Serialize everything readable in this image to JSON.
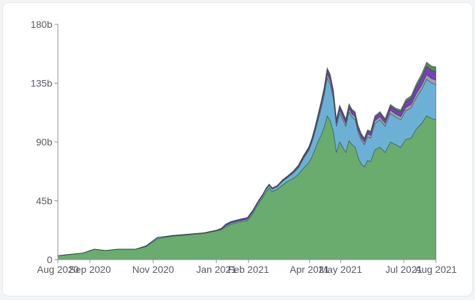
{
  "chart_data": {
    "type": "area",
    "stacked": true,
    "title": "",
    "xlabel": "",
    "ylabel": "",
    "ylim": [
      0,
      180
    ],
    "y_ticks": [
      {
        "value": 0,
        "label": "0"
      },
      {
        "value": 45,
        "label": "45b"
      },
      {
        "value": 90,
        "label": "90b"
      },
      {
        "value": 135,
        "label": "135b"
      },
      {
        "value": 180,
        "label": "180b"
      }
    ],
    "x_ticks": [
      {
        "x": "2020-08-01",
        "label": "Aug 2020"
      },
      {
        "x": "2020-09-01",
        "label": "Sep 2020"
      },
      {
        "x": "2020-11-01",
        "label": "Nov 2020"
      },
      {
        "x": "2021-01-01",
        "label": "Jan 2021"
      },
      {
        "x": "2021-02-01",
        "label": "Feb 2021"
      },
      {
        "x": "2021-04-01",
        "label": "Apr 2021"
      },
      {
        "x": "2021-05-01",
        "label": "May 2021"
      },
      {
        "x": "2021-07-01",
        "label": "Jul 2021"
      },
      {
        "x": "2021-08-01",
        "label": "Aug 2021"
      }
    ],
    "x": [
      "2020-08-01",
      "2020-08-12",
      "2020-08-25",
      "2020-09-05",
      "2020-09-16",
      "2020-09-28",
      "2020-10-15",
      "2020-10-25",
      "2020-11-05",
      "2020-11-20",
      "2020-12-05",
      "2020-12-20",
      "2021-01-01",
      "2021-01-06",
      "2021-01-10",
      "2021-01-15",
      "2021-01-20",
      "2021-01-25",
      "2021-01-31",
      "2021-02-05",
      "2021-02-10",
      "2021-02-15",
      "2021-02-18",
      "2021-02-21",
      "2021-02-24",
      "2021-03-01",
      "2021-03-06",
      "2021-03-11",
      "2021-03-16",
      "2021-03-21",
      "2021-03-26",
      "2021-03-31",
      "2021-04-03",
      "2021-04-06",
      "2021-04-09",
      "2021-04-12",
      "2021-04-15",
      "2021-04-18",
      "2021-04-21",
      "2021-04-24",
      "2021-04-27",
      "2021-04-30",
      "2021-05-03",
      "2021-05-06",
      "2021-05-09",
      "2021-05-12",
      "2021-05-15",
      "2021-05-18",
      "2021-05-21",
      "2021-05-24",
      "2021-05-27",
      "2021-05-30",
      "2021-06-03",
      "2021-06-08",
      "2021-06-13",
      "2021-06-18",
      "2021-06-23",
      "2021-06-28",
      "2021-07-03",
      "2021-07-08",
      "2021-07-13",
      "2021-07-18",
      "2021-07-23",
      "2021-07-28",
      "2021-08-01"
    ],
    "series": [
      {
        "color": "#6aab6e",
        "values": [
          3,
          4,
          5,
          8,
          7,
          8,
          8,
          10,
          16,
          18,
          19,
          20,
          22,
          23,
          25,
          27,
          28,
          29,
          30,
          35,
          42,
          48,
          52,
          55,
          52,
          54,
          57,
          60,
          62,
          65,
          70,
          74,
          78,
          84,
          90,
          95,
          101,
          110,
          106,
          98,
          82,
          90,
          86,
          82,
          91,
          88,
          86,
          78,
          73,
          71,
          76,
          75,
          84,
          86,
          82,
          90,
          88,
          86,
          92,
          93,
          100,
          104,
          110,
          108,
          107
        ]
      },
      {
        "color": "#6cb1d5",
        "values": [
          0,
          0,
          0,
          0,
          0,
          0,
          0,
          0.5,
          1,
          0.5,
          0.5,
          0.5,
          0.5,
          0.5,
          1,
          1,
          1,
          1,
          1,
          1.5,
          1.5,
          1.5,
          2,
          2,
          2,
          2,
          3,
          3,
          4,
          5,
          7,
          9,
          11,
          13,
          16,
          20,
          24,
          29,
          28,
          25,
          20,
          22,
          21,
          20,
          22,
          21,
          21,
          19,
          18,
          17,
          18,
          18,
          20,
          21,
          20,
          22,
          21,
          21,
          22,
          23,
          24,
          26,
          28,
          27,
          27
        ]
      },
      {
        "color": "#9aa3af",
        "values": [
          0,
          0,
          0,
          0,
          0,
          0,
          0,
          0,
          0,
          0,
          0,
          0,
          0,
          0,
          0.2,
          0.2,
          0.2,
          0.2,
          0.2,
          0.3,
          0.3,
          0.3,
          0.3,
          0.3,
          0.4,
          0.4,
          0.5,
          0.5,
          0.6,
          0.8,
          1,
          1.2,
          1.4,
          1.6,
          2,
          2.4,
          2.8,
          3.2,
          3.1,
          2.8,
          2.3,
          2.5,
          2.4,
          2.3,
          2.5,
          2.4,
          2.4,
          2.2,
          2.1,
          2,
          2.1,
          2.1,
          2.3,
          2.4,
          2.3,
          2.5,
          2.4,
          2.4,
          2.6,
          2.7,
          2.9,
          3.2,
          3.5,
          3.4,
          3.4
        ]
      },
      {
        "color": "#7b3fb3",
        "values": [
          0,
          0,
          0,
          0,
          0,
          0,
          0,
          0,
          0,
          0,
          0,
          0,
          0,
          0.5,
          1,
          1,
          1,
          1,
          1,
          0.8,
          0.6,
          0.5,
          0.5,
          0.5,
          0.5,
          0.5,
          0.6,
          0.6,
          0.8,
          0.9,
          1,
          1.2,
          1.4,
          1.7,
          2,
          2.4,
          2.8,
          3.4,
          3.3,
          3,
          2.5,
          2.7,
          2.6,
          2.5,
          2.7,
          2.6,
          2.6,
          2.4,
          2.3,
          2.2,
          2.3,
          2.3,
          2.6,
          2.7,
          2.6,
          3,
          3.2,
          3.6,
          4.2,
          4.6,
          5.2,
          5.8,
          6.4,
          6.2,
          6.3
        ]
      },
      {
        "color": "#4d8f57",
        "values": [
          0,
          0,
          0,
          0,
          0,
          0,
          0,
          0,
          0,
          0,
          0,
          0,
          0,
          0,
          0,
          0,
          0,
          0,
          0,
          0,
          0,
          0,
          0,
          0,
          0,
          0,
          0.2,
          0.2,
          0.3,
          0.5,
          0.6,
          0.7,
          0.8,
          0.9,
          1,
          1.1,
          1.2,
          1.3,
          1.3,
          1.2,
          1.1,
          1.1,
          1.1,
          1,
          1.1,
          1.1,
          1.1,
          1,
          1,
          1,
          1,
          1,
          1.1,
          1.2,
          1.1,
          1.3,
          1.4,
          1.6,
          1.9,
          2.1,
          2.5,
          2.8,
          3.2,
          3.5,
          3.8
        ]
      }
    ]
  }
}
